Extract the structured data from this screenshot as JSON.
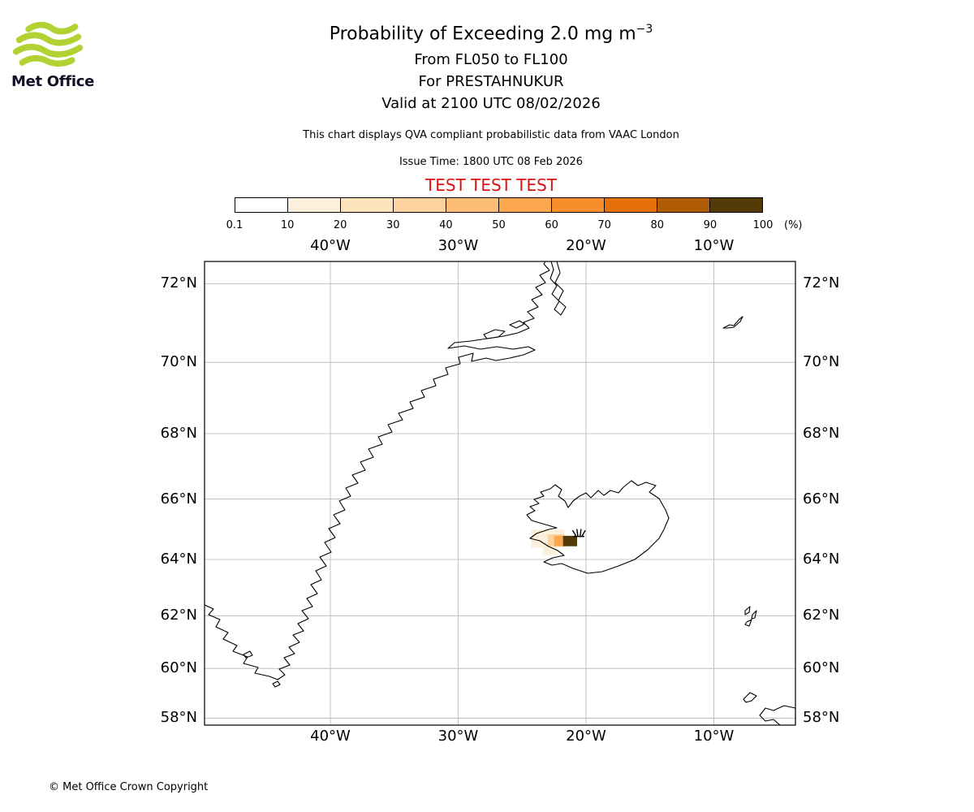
{
  "logo": {
    "brand": "Met Office",
    "wave_color": "#b2d234"
  },
  "header": {
    "title": "Probability of Exceeding 2.0 mg m",
    "title_sup": "−3",
    "line2": "From FL050 to FL100",
    "line3": "For PRESTAHNUKUR",
    "line4": "Valid at 2100 UTC 08/02/2026",
    "description": "This chart displays QVA compliant probabilistic data from VAAC London",
    "issue_time": "Issue Time: 1800 UTC 08 Feb 2026",
    "test_banner": "TEST TEST TEST",
    "test_color": "#dd1111"
  },
  "colorbar": {
    "tick_labels": [
      "0.1",
      "10",
      "20",
      "30",
      "40",
      "50",
      "60",
      "70",
      "80",
      "90",
      "100"
    ],
    "unit": "(%)",
    "segment_colors": [
      "#ffffff",
      "#fcf0dc",
      "#fce3bc",
      "#fdd29c",
      "#fdbd77",
      "#fca750",
      "#f78d2b",
      "#e57009",
      "#b05c07",
      "#533a06"
    ]
  },
  "map": {
    "lat_ticks": [
      {
        "label": "72°N",
        "lat": 72
      },
      {
        "label": "70°N",
        "lat": 70
      },
      {
        "label": "68°N",
        "lat": 68
      },
      {
        "label": "66°N",
        "lat": 66
      },
      {
        "label": "64°N",
        "lat": 64
      },
      {
        "label": "62°N",
        "lat": 62
      },
      {
        "label": "60°N",
        "lat": 60
      },
      {
        "label": "58°N",
        "lat": 58
      }
    ],
    "lon_ticks": [
      {
        "label": "40°W",
        "lon": -40
      },
      {
        "label": "30°W",
        "lon": -30
      },
      {
        "label": "20°W",
        "lon": -20
      },
      {
        "label": "10°W",
        "lon": -10
      }
    ]
  },
  "chart_data": {
    "type": "heatmap",
    "title": "Probability of Exceeding 2.0 mg m⁻³",
    "flight_levels": "FL050 to FL100",
    "volcano": "PRESTAHNUKUR",
    "valid_time": "2100 UTC 08/02/2026",
    "issue_time": "1800 UTC 08 Feb 2026",
    "status": "TEST",
    "unit": "%",
    "grid": true,
    "colorbar_ticks_pct": [
      0.1,
      10,
      20,
      30,
      40,
      50,
      60,
      70,
      80,
      90,
      100
    ],
    "extent": {
      "lon_min": -49.8,
      "lon_max": -3.6,
      "lat_min": 57.7,
      "lat_max": 72.5
    },
    "projection": "mercator",
    "cells": [
      {
        "lon_min": -24.3,
        "lon_max": -21.7,
        "lat_min": 64.4,
        "lat_max": 65.0,
        "probability_pct": 15
      },
      {
        "lon_min": -23.0,
        "lon_max": -21.7,
        "lat_min": 64.45,
        "lat_max": 64.85,
        "probability_pct": 30
      },
      {
        "lon_min": -22.5,
        "lon_max": -21.8,
        "lat_min": 64.45,
        "lat_max": 64.8,
        "probability_pct": 55
      },
      {
        "lon_min": -21.8,
        "lon_max": -20.7,
        "lat_min": 64.45,
        "lat_max": 64.8,
        "probability_pct": 95
      },
      {
        "lon_min": -23.4,
        "lon_max": -22.3,
        "lat_min": 64.15,
        "lat_max": 64.45,
        "probability_pct": 12
      }
    ],
    "source_marker": {
      "symbol": "volcano",
      "lat": 64.78,
      "lon": -20.55
    }
  },
  "footer": {
    "copyright": "© Met Office Crown Copyright"
  }
}
